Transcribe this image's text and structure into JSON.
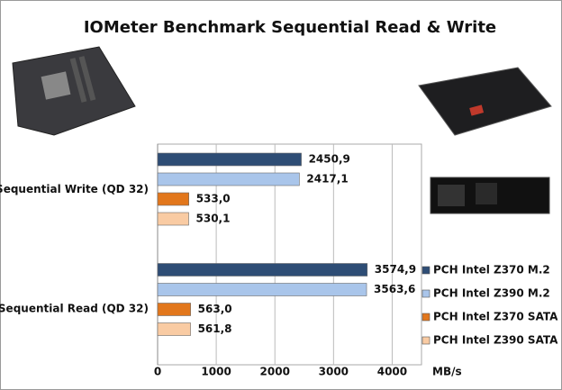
{
  "chart_data": {
    "type": "hbar",
    "title": "IOMeter Benchmark Sequential Read & Write",
    "categories": [
      "Sequential Write (QD 32)",
      "Sequential Read (QD 32)"
    ],
    "series": [
      {
        "name": "PCH Intel Z370 M.2",
        "color": "#2e4d75",
        "values": [
          2450.9,
          3574.9
        ],
        "value_labels": [
          "2450,9",
          "3574,9"
        ]
      },
      {
        "name": "PCH Intel Z390 M.2",
        "color": "#a9c5ea",
        "values": [
          2417.1,
          3563.6
        ],
        "value_labels": [
          "2417,1",
          "3563,6"
        ]
      },
      {
        "name": "PCH Intel Z370 SATA",
        "color": "#e2771c",
        "values": [
          533.0,
          563.0
        ],
        "value_labels": [
          "533,0",
          "563,0"
        ]
      },
      {
        "name": "PCH Intel Z390 SATA",
        "color": "#f9cba3",
        "values": [
          530.1,
          561.8
        ],
        "value_labels": [
          "530,1",
          "561,8"
        ]
      }
    ],
    "x_label": "MB/s",
    "xlim": [
      0,
      4500
    ],
    "xticks": [
      0,
      1000,
      2000,
      3000,
      4000
    ],
    "grid": true
  }
}
